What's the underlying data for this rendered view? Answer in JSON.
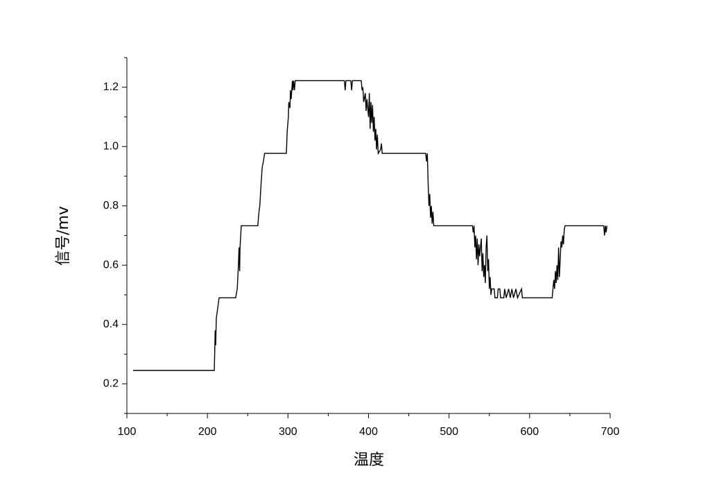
{
  "chart_data": {
    "type": "line",
    "xlabel": "温度",
    "ylabel": "信号/mv",
    "xlim": [
      100,
      700
    ],
    "xticks": [
      100,
      200,
      300,
      400,
      500,
      600,
      700
    ],
    "xminorticks": [
      150,
      250,
      350,
      450,
      550,
      650
    ],
    "ylim": [
      0.1,
      1.3
    ],
    "yticks": [
      0.2,
      0.4,
      0.6,
      0.8,
      {
        "value": 1,
        "label": "1.0"
      },
      1.2
    ],
    "yminorticks": [
      0.1,
      0.3,
      0.5,
      0.7,
      0.9,
      1.1,
      1.3
    ],
    "grid": false,
    "color": "#000000",
    "x": [
      107.7,
      208.5,
      209,
      209.6,
      210.3,
      211,
      213,
      214.5,
      235,
      237,
      238.5,
      239.2,
      240,
      240.5,
      242,
      262.5,
      264,
      265,
      266.5,
      268,
      269.5,
      271,
      298,
      299,
      300.5,
      301,
      302.5,
      303,
      304,
      305.5,
      306,
      307,
      308,
      309,
      370,
      371,
      372,
      378,
      379,
      380,
      391,
      392,
      393,
      394,
      396,
      397,
      398,
      400,
      401,
      402,
      403,
      404,
      405,
      406,
      407,
      408,
      409,
      410,
      411,
      412,
      415,
      416,
      417,
      471,
      472,
      473,
      474,
      475,
      476,
      477,
      478,
      479,
      480,
      481,
      529,
      530,
      531,
      532,
      533,
      534,
      535,
      536,
      537,
      538,
      540,
      541,
      542,
      543,
      544,
      545,
      546,
      547,
      548,
      549,
      550,
      551,
      552,
      553,
      556,
      557,
      560,
      561,
      563,
      564,
      568,
      569,
      571,
      574,
      576,
      578,
      580,
      583,
      585,
      590,
      591,
      628,
      629,
      630,
      631,
      632,
      633,
      634,
      635,
      636,
      637,
      638,
      639,
      640,
      641,
      642,
      643,
      644,
      692,
      693,
      694,
      695,
      696
    ],
    "values": [
      0.245,
      0.245,
      0.3,
      0.38,
      0.33,
      0.42,
      0.46,
      0.49,
      0.49,
      0.52,
      0.6,
      0.66,
      0.58,
      0.66,
      0.733,
      0.733,
      0.78,
      0.8,
      0.87,
      0.93,
      0.95,
      0.977,
      0.977,
      1.05,
      1.1,
      1.15,
      1.13,
      1.19,
      1.16,
      1.222,
      1.19,
      1.222,
      1.19,
      1.222,
      1.222,
      1.19,
      1.222,
      1.222,
      1.19,
      1.222,
      1.222,
      1.19,
      1.2,
      1.15,
      1.18,
      1.12,
      1.16,
      1.1,
      1.18,
      1.06,
      1.15,
      1.08,
      1.14,
      1.05,
      1.1,
      1.02,
      1.06,
      0.99,
      1.04,
      0.977,
      0.99,
      1.01,
      0.977,
      0.977,
      0.95,
      0.977,
      0.88,
      0.8,
      0.84,
      0.76,
      0.8,
      0.74,
      0.78,
      0.733,
      0.733,
      0.71,
      0.733,
      0.66,
      0.7,
      0.62,
      0.69,
      0.6,
      0.67,
      0.63,
      0.69,
      0.58,
      0.64,
      0.56,
      0.6,
      0.54,
      0.66,
      0.7,
      0.58,
      0.62,
      0.52,
      0.56,
      0.5,
      0.52,
      0.52,
      0.49,
      0.49,
      0.52,
      0.52,
      0.49,
      0.49,
      0.52,
      0.49,
      0.52,
      0.49,
      0.52,
      0.49,
      0.52,
      0.49,
      0.52,
      0.49,
      0.49,
      0.52,
      0.55,
      0.52,
      0.58,
      0.54,
      0.6,
      0.55,
      0.66,
      0.56,
      0.62,
      0.68,
      0.66,
      0.7,
      0.67,
      0.72,
      0.733,
      0.733,
      0.7,
      0.733,
      0.71,
      0.733
    ]
  }
}
